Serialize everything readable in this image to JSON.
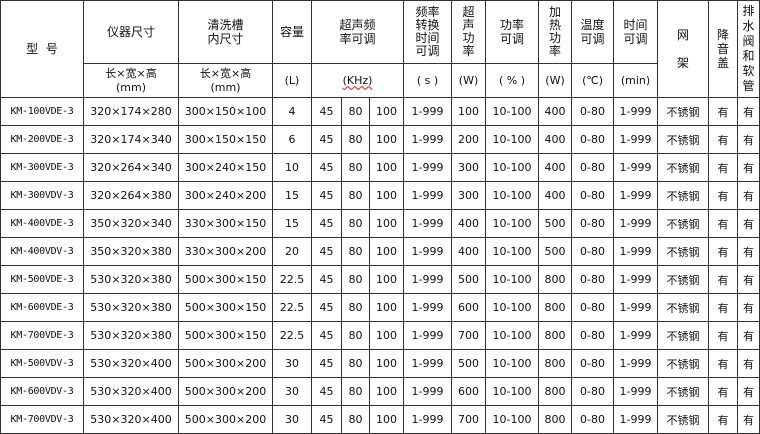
{
  "header": {
    "model": "型  号",
    "instrument_size": "仪器尺寸",
    "tank_size": "清洗槽\n内尺寸",
    "capacity": "容量",
    "frequency": "超声频\n率可调",
    "freq_switch_time": "频率\n转换\n时间\n可调",
    "ultrasonic_power": "超\n声\n功\n率",
    "power_adjust": "功率\n可调",
    "heating_power": "加\n热\n功\n率",
    "temperature": "温度\n可调",
    "time": "时间\n可调",
    "basket": "网\n\n架",
    "noise_cover": "降\n音\n盖",
    "drain": "排\n水\n阀\n和\n软\n管",
    "units": {
      "instrument_size": "长×宽×高\n(mm)",
      "tank_size": "长×宽×高\n(mm)",
      "capacity": "(L)",
      "frequency": "(KHz)",
      "freq_switch_time": "( s )",
      "ultrasonic_power": "(W)",
      "power_adjust": "( % )",
      "heating_power": "(W)",
      "temperature": "(℃)",
      "time": "(min)"
    }
  },
  "rows": [
    [
      "KM-100VDE-3",
      "320×174×280",
      "300×150×100",
      "4",
      "45",
      "80",
      "100",
      "1-999",
      "100",
      "10-100",
      "400",
      "0-80",
      "1-999",
      "不锈钢",
      "有",
      "有"
    ],
    [
      "KM-200VDE-3",
      "320×174×340",
      "300×150×150",
      "6",
      "45",
      "80",
      "100",
      "1-999",
      "200",
      "10-100",
      "400",
      "0-80",
      "1-999",
      "不锈钢",
      "有",
      "有"
    ],
    [
      "KM-300VDE-3",
      "320×264×340",
      "300×240×150",
      "10",
      "45",
      "80",
      "100",
      "1-999",
      "300",
      "10-100",
      "400",
      "0-80",
      "1-999",
      "不锈钢",
      "有",
      "有"
    ],
    [
      "KM-300VDV-3",
      "320×264×380",
      "300×240×200",
      "15",
      "45",
      "80",
      "100",
      "1-999",
      "300",
      "10-100",
      "400",
      "0-80",
      "1-999",
      "不锈钢",
      "有",
      "有"
    ],
    [
      "KM-400VDE-3",
      "350×320×340",
      "330×300×150",
      "15",
      "45",
      "80",
      "100",
      "1-999",
      "400",
      "10-100",
      "500",
      "0-80",
      "1-999",
      "不锈钢",
      "有",
      "有"
    ],
    [
      "KM-400VDV-3",
      "350×320×380",
      "330×300×200",
      "20",
      "45",
      "80",
      "100",
      "1-999",
      "400",
      "10-100",
      "500",
      "0-80",
      "1-999",
      "不锈钢",
      "有",
      "有"
    ],
    [
      "KM-500VDE-3",
      "530×320×380",
      "500×300×150",
      "22.5",
      "45",
      "80",
      "100",
      "1-999",
      "500",
      "10-100",
      "800",
      "0-80",
      "1-999",
      "不锈钢",
      "有",
      "有"
    ],
    [
      "KM-600VDE-3",
      "530×320×380",
      "500×300×150",
      "22.5",
      "45",
      "80",
      "100",
      "1-999",
      "600",
      "10-100",
      "800",
      "0-80",
      "1-999",
      "不锈钢",
      "有",
      "有"
    ],
    [
      "KM-700VDE-3",
      "530×320×380",
      "500×300×150",
      "22.5",
      "45",
      "80",
      "100",
      "1-999",
      "700",
      "10-100",
      "800",
      "0-80",
      "1-999",
      "不锈钢",
      "有",
      "有"
    ],
    [
      "KM-500VDV-3",
      "530×320×400",
      "500×300×200",
      "30",
      "45",
      "80",
      "100",
      "1-999",
      "500",
      "10-100",
      "800",
      "0-80",
      "1-999",
      "不锈钢",
      "有",
      "有"
    ],
    [
      "KM-600VDV-3",
      "530×320×400",
      "500×300×200",
      "30",
      "45",
      "80",
      "100",
      "1-999",
      "600",
      "10-100",
      "800",
      "0-80",
      "1-999",
      "不锈钢",
      "有",
      "有"
    ],
    [
      "KM-700VDV-3",
      "530×320×400",
      "500×300×200",
      "30",
      "45",
      "80",
      "100",
      "1-999",
      "700",
      "10-100",
      "800",
      "0-80",
      "1-999",
      "不锈钢",
      "有",
      "有"
    ]
  ]
}
